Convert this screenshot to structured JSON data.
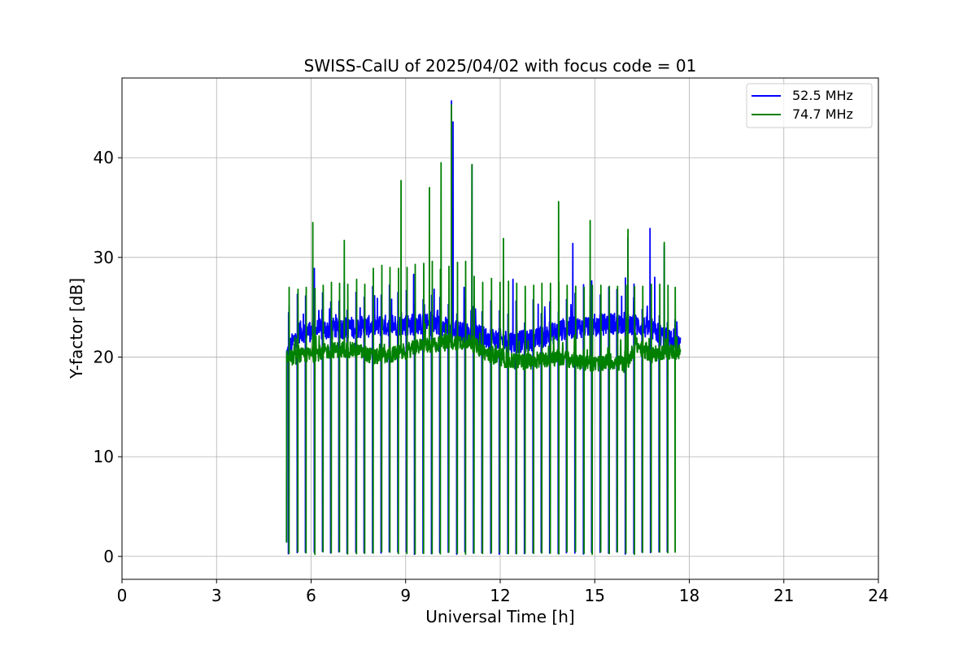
{
  "chart_data": {
    "type": "line",
    "title": "SWISS-CalU of 2025/04/02 with focus code = 01",
    "xlabel": "Universal Time [h]",
    "ylabel": "Y-factor [dB]",
    "xlim": [
      0,
      24
    ],
    "ylim": [
      -2.3,
      48
    ],
    "xticks": [
      0,
      3,
      6,
      9,
      12,
      15,
      18,
      21,
      24
    ],
    "xtick_labels": [
      "0",
      "3",
      "6",
      "9",
      "12",
      "15",
      "18",
      "21",
      "24"
    ],
    "yticks": [
      0,
      10,
      20,
      30,
      40
    ],
    "ytick_labels": [
      "0",
      "10",
      "20",
      "30",
      "40"
    ],
    "grid": true,
    "legend_position": "top-right",
    "time_range_h": [
      5.22,
      17.72
    ],
    "series": [
      {
        "name": "52.5 MHz",
        "color": "#0000ff",
        "baseline": [
          [
            5.22,
            20.2
          ],
          [
            5.6,
            22.5
          ],
          [
            6.5,
            22.8
          ],
          [
            7.5,
            23.0
          ],
          [
            8.5,
            23.2
          ],
          [
            9.5,
            23.3
          ],
          [
            10.0,
            23.2
          ],
          [
            10.8,
            22.5
          ],
          [
            11.5,
            22.0
          ],
          [
            12.5,
            21.5
          ],
          [
            13.2,
            21.8
          ],
          [
            14.0,
            22.8
          ],
          [
            15.0,
            23.2
          ],
          [
            16.0,
            23.5
          ],
          [
            16.8,
            22.8
          ],
          [
            17.72,
            21.0
          ]
        ],
        "cal_dips": [
          5.28,
          5.56,
          5.82,
          6.1,
          6.36,
          6.62,
          6.88,
          7.14,
          7.42,
          7.68,
          7.95,
          8.22,
          8.48,
          8.75,
          9.02,
          9.28,
          9.55,
          9.82,
          10.08,
          10.35,
          10.62,
          10.88,
          11.15,
          11.42,
          11.7,
          11.97,
          12.24,
          12.5,
          12.77,
          13.04,
          13.3,
          13.57,
          13.84,
          14.1,
          14.37,
          14.64,
          14.9,
          15.17,
          15.44,
          15.7,
          15.97,
          16.24,
          16.5,
          16.77,
          17.04,
          17.3
        ],
        "dip_min": 0.2,
        "spikes": [
          [
            5.3,
            25.1
          ],
          [
            5.75,
            24.3
          ],
          [
            6.1,
            28.9
          ],
          [
            7.05,
            27.5
          ],
          [
            8.1,
            25.9
          ],
          [
            8.55,
            25.8
          ],
          [
            9.25,
            28.3
          ],
          [
            9.9,
            26.8
          ],
          [
            10.45,
            45.7
          ],
          [
            10.5,
            43.6
          ],
          [
            10.85,
            27.0
          ],
          [
            11.1,
            39.3
          ],
          [
            12.1,
            28.0
          ],
          [
            12.4,
            27.8
          ],
          [
            13.2,
            25.3
          ],
          [
            14.3,
            31.4
          ],
          [
            14.85,
            26.0
          ],
          [
            15.85,
            26.1
          ],
          [
            16.05,
            32.0
          ],
          [
            16.75,
            32.9
          ],
          [
            16.9,
            28.0
          ],
          [
            17.2,
            31.2
          ],
          [
            17.5,
            22.8
          ]
        ]
      },
      {
        "name": "74.7 MHz",
        "color": "#008000",
        "baseline": [
          [
            5.22,
            19.8
          ],
          [
            5.6,
            20.1
          ],
          [
            6.0,
            20.2
          ],
          [
            6.5,
            20.6
          ],
          [
            7.0,
            20.8
          ],
          [
            7.5,
            20.6
          ],
          [
            8.0,
            20.0
          ],
          [
            8.5,
            20.2
          ],
          [
            9.0,
            20.6
          ],
          [
            9.5,
            21.1
          ],
          [
            10.0,
            21.3
          ],
          [
            10.5,
            21.5
          ],
          [
            11.0,
            21.6
          ],
          [
            11.5,
            20.5
          ],
          [
            12.0,
            19.8
          ],
          [
            12.5,
            19.5
          ],
          [
            13.0,
            19.6
          ],
          [
            13.5,
            19.8
          ],
          [
            14.0,
            19.9
          ],
          [
            14.5,
            19.5
          ],
          [
            15.0,
            19.3
          ],
          [
            15.5,
            19.6
          ],
          [
            16.0,
            19.2
          ],
          [
            16.3,
            21.2
          ],
          [
            16.8,
            20.2
          ],
          [
            17.2,
            20.6
          ],
          [
            17.72,
            20.5
          ]
        ],
        "cal_dips": [
          5.3,
          5.58,
          5.84,
          6.12,
          6.38,
          6.64,
          6.9,
          7.16,
          7.44,
          7.7,
          7.97,
          8.24,
          8.5,
          8.77,
          9.04,
          9.3,
          9.57,
          9.84,
          10.1,
          10.37,
          10.64,
          10.9,
          11.17,
          11.44,
          11.72,
          11.99,
          12.26,
          12.52,
          12.79,
          13.06,
          13.32,
          13.59,
          13.86,
          14.12,
          14.39,
          14.66,
          14.92,
          15.19,
          15.46,
          15.72,
          15.99,
          16.26,
          16.52,
          16.79,
          17.06,
          17.32,
          17.55,
          17.72
        ],
        "dip_min": 0.2,
        "cal_peaks": [
          27.0,
          26.8,
          27.0,
          26.9,
          27.2,
          27.5,
          27.4,
          27.3,
          27.8,
          27.3,
          28.9,
          29.2,
          29.0,
          28.9,
          29.0,
          29.3,
          29.4,
          29.6,
          28.8,
          29.1,
          29.5,
          29.6,
          28.1,
          27.5,
          27.9,
          27.5,
          27.6,
          27.4,
          27.1,
          27.2,
          27.4,
          27.4,
          27.5,
          27.2,
          27.1,
          27.0,
          27.2,
          27.2,
          27.1,
          27.1,
          27.2,
          27.1,
          27.1,
          27.3,
          27.3,
          27.2,
          27.0,
          26.9
        ],
        "spikes": [
          [
            5.55,
            21.8
          ],
          [
            6.05,
            33.5
          ],
          [
            7.05,
            31.7
          ],
          [
            8.85,
            37.7
          ],
          [
            9.75,
            37.0
          ],
          [
            10.12,
            39.5
          ],
          [
            10.45,
            45.3
          ],
          [
            11.1,
            39.3
          ],
          [
            12.1,
            31.9
          ],
          [
            13.85,
            35.6
          ],
          [
            14.85,
            33.7
          ],
          [
            16.05,
            32.8
          ],
          [
            17.2,
            31.5
          ]
        ]
      }
    ]
  }
}
